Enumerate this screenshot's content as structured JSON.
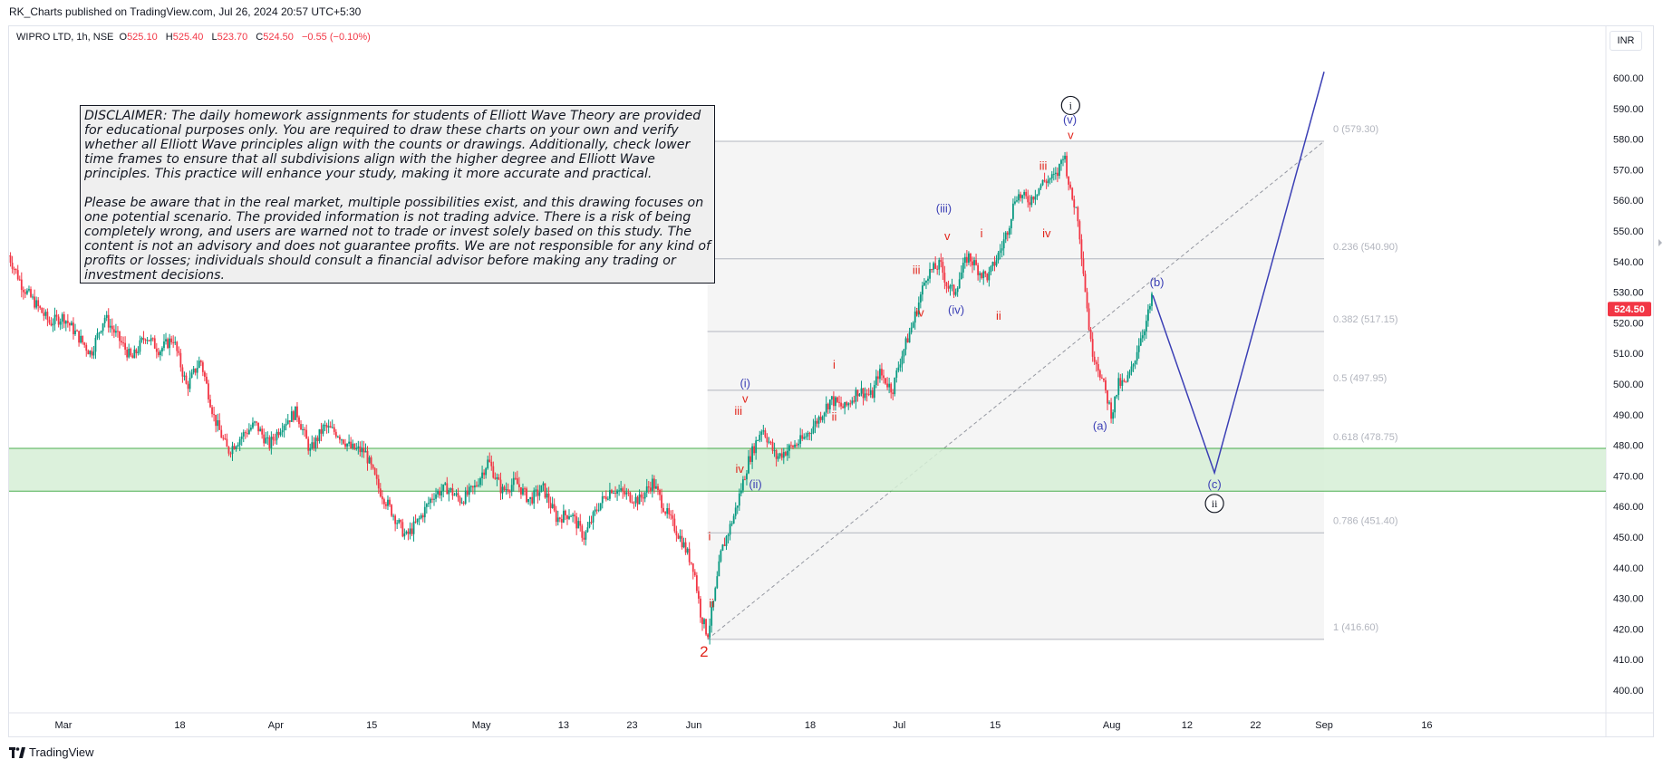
{
  "header": {
    "published_by": "RK_Charts published on TradingView.com, Jul 26, 2024 20:57 UTC+5:30"
  },
  "symbol": {
    "name": "WIPRO LTD, 1h, NSE",
    "open_label": "O",
    "open": "525.10",
    "high_label": "H",
    "high": "525.40",
    "low_label": "L",
    "low": "523.70",
    "close_label": "C",
    "close": "524.50",
    "change": "−0.55 (−0.10%)"
  },
  "currency": "INR",
  "disclaimer": {
    "p1": "DISCLAIMER:  The daily homework assignments for students of Elliott Wave Theory are provided for educational purposes only. You are required to draw these charts on your own and verify whether all Elliott Wave principles align with the counts or drawings. Additionally, check lower time frames to ensure that all subdivisions align with the higher degree and Elliott Wave principles. This practice will enhance your study, making it more accurate and practical.",
    "p2": "Please be aware that in the real market, multiple possibilities exist, and this drawing focuses on one potential scenario. The provided information is not trading advice. There is a risk of being completely wrong, and users are warned not to trade or invest solely based on this study. The content is not an advisory and does not guarantee profits. We are not responsible for any kind of profits or losses; individuals should consult a financial advisor before making any trading or investment decisions."
  },
  "footer": {
    "brand": "TradingView"
  },
  "colors": {
    "up": "#089981",
    "down": "#f23645",
    "wave_blue": "#3b3fb5",
    "wave_red": "#e1261c",
    "zone": "#d6eed6",
    "zone_border": "#4caf50",
    "price_tag": "#f23645"
  },
  "chart_data": {
    "type": "candlestick",
    "y_axis": {
      "min": 395,
      "max": 605,
      "ticks": [
        "600.00",
        "590.00",
        "580.00",
        "570.00",
        "560.00",
        "550.00",
        "540.00",
        "530.00",
        "520.00",
        "510.00",
        "500.00",
        "490.00",
        "480.00",
        "470.00",
        "460.00",
        "450.00",
        "440.00",
        "430.00",
        "420.00",
        "410.00",
        "400.00"
      ]
    },
    "x_axis": {
      "labels": [
        {
          "label": "Mar",
          "day": 0
        },
        {
          "label": "18",
          "day": 17
        },
        {
          "label": "Apr",
          "day": 31
        },
        {
          "label": "15",
          "day": 45
        },
        {
          "label": "May",
          "day": 61
        },
        {
          "label": "13",
          "day": 73
        },
        {
          "label": "23",
          "day": 83
        },
        {
          "label": "Jun",
          "day": 92
        },
        {
          "label": "18",
          "day": 109
        },
        {
          "label": "Jul",
          "day": 122
        },
        {
          "label": "15",
          "day": 136
        },
        {
          "label": "Aug",
          "day": 153
        },
        {
          "label": "12",
          "day": 164
        },
        {
          "label": "22",
          "day": 174
        },
        {
          "label": "Sep",
          "day": 184
        },
        {
          "label": "16",
          "day": 199
        }
      ]
    },
    "last_price": "524.50",
    "support_zone": {
      "top": 479,
      "bottom": 465
    },
    "fibonacci": [
      {
        "label": "0 (579.30)",
        "price": 579.3
      },
      {
        "label": "0.236 (540.90)",
        "price": 540.9
      },
      {
        "label": "0.382 (517.15)",
        "price": 517.15
      },
      {
        "label": "0.5 (497.95)",
        "price": 497.95
      },
      {
        "label": "0.618 (478.75)",
        "price": 478.75
      },
      {
        "label": "0.786 (451.40)",
        "price": 451.4
      },
      {
        "label": "1 (416.60)",
        "price": 416.6
      }
    ],
    "price_path": [
      [
        -8,
        542
      ],
      [
        -6,
        532
      ],
      [
        -4,
        526
      ],
      [
        -2,
        520
      ],
      [
        0,
        522
      ],
      [
        2,
        516
      ],
      [
        4,
        510
      ],
      [
        6,
        522
      ],
      [
        8,
        515
      ],
      [
        10,
        508
      ],
      [
        12,
        516
      ],
      [
        14,
        511
      ],
      [
        16,
        515
      ],
      [
        18,
        499
      ],
      [
        20,
        508
      ],
      [
        22,
        489
      ],
      [
        24,
        478
      ],
      [
        26,
        483
      ],
      [
        28,
        487
      ],
      [
        30,
        480
      ],
      [
        32,
        487
      ],
      [
        34,
        491
      ],
      [
        36,
        478
      ],
      [
        38,
        486
      ],
      [
        40,
        484
      ],
      [
        42,
        479
      ],
      [
        44,
        478
      ],
      [
        46,
        466
      ],
      [
        48,
        458
      ],
      [
        50,
        450
      ],
      [
        52,
        456
      ],
      [
        54,
        464
      ],
      [
        56,
        466
      ],
      [
        58,
        462
      ],
      [
        60,
        466
      ],
      [
        62,
        475
      ],
      [
        64,
        465
      ],
      [
        66,
        468
      ],
      [
        68,
        462
      ],
      [
        70,
        466
      ],
      [
        72,
        456
      ],
      [
        74,
        458
      ],
      [
        76,
        450
      ],
      [
        78,
        460
      ],
      [
        80,
        466
      ],
      [
        82,
        464
      ],
      [
        84,
        462
      ],
      [
        86,
        468
      ],
      [
        88,
        458
      ],
      [
        90,
        450
      ],
      [
        92,
        440
      ],
      [
        93,
        425
      ],
      [
        94,
        418
      ],
      [
        95,
        430
      ],
      [
        96,
        445
      ],
      [
        98,
        458
      ],
      [
        100,
        475
      ],
      [
        102,
        486
      ],
      [
        104,
        476
      ],
      [
        106,
        479
      ],
      [
        108,
        482
      ],
      [
        110,
        488
      ],
      [
        112,
        495
      ],
      [
        114,
        492
      ],
      [
        116,
        498
      ],
      [
        118,
        496
      ],
      [
        119,
        504
      ],
      [
        121,
        498
      ],
      [
        122,
        507
      ],
      [
        124,
        520
      ],
      [
        125,
        528
      ],
      [
        126,
        536
      ],
      [
        128,
        539
      ],
      [
        129,
        532
      ],
      [
        130,
        530
      ],
      [
        132,
        542
      ],
      [
        134,
        536
      ],
      [
        135,
        535
      ],
      [
        136,
        540
      ],
      [
        137,
        545
      ],
      [
        138,
        552
      ],
      [
        139,
        562
      ],
      [
        141,
        560
      ],
      [
        143,
        566
      ],
      [
        145,
        568
      ],
      [
        146,
        576
      ],
      [
        147,
        562
      ],
      [
        148,
        556
      ],
      [
        150,
        512
      ],
      [
        151,
        506
      ],
      [
        152,
        498
      ],
      [
        153,
        490
      ],
      [
        154,
        500
      ],
      [
        155,
        500
      ],
      [
        156,
        505
      ],
      [
        157,
        514
      ],
      [
        158,
        520
      ],
      [
        159,
        529
      ]
    ],
    "projection": [
      [
        159,
        529
      ],
      [
        168,
        471
      ],
      [
        184,
        602
      ]
    ],
    "wave_labels": [
      {
        "text": "2",
        "day": 93.5,
        "price": 411,
        "color": "red",
        "size": 17
      },
      {
        "text": "i",
        "day": 94.3,
        "price": 449,
        "color": "red"
      },
      {
        "text": "ii",
        "day": 94.6,
        "price": 427,
        "color": "red"
      },
      {
        "text": "iii",
        "day": 98.5,
        "price": 490,
        "color": "red"
      },
      {
        "text": "iv",
        "day": 98.7,
        "price": 471,
        "color": "red"
      },
      {
        "text": "v",
        "day": 99.5,
        "price": 494,
        "color": "red"
      },
      {
        "text": "(i)",
        "day": 99.5,
        "price": 499,
        "color": "blue"
      },
      {
        "text": "(ii)",
        "day": 101,
        "price": 466,
        "color": "blue"
      },
      {
        "text": "i",
        "day": 112.5,
        "price": 505,
        "color": "red"
      },
      {
        "text": "ii",
        "day": 112.5,
        "price": 488,
        "color": "red"
      },
      {
        "text": "iii",
        "day": 124.5,
        "price": 536,
        "color": "red"
      },
      {
        "text": "iv",
        "day": 125,
        "price": 522,
        "color": "red"
      },
      {
        "text": "v",
        "day": 129,
        "price": 547,
        "color": "red"
      },
      {
        "text": "(iii)",
        "day": 128.5,
        "price": 556,
        "color": "blue"
      },
      {
        "text": "(iv)",
        "day": 130.3,
        "price": 523,
        "color": "blue"
      },
      {
        "text": "i",
        "day": 134,
        "price": 548,
        "color": "red"
      },
      {
        "text": "ii",
        "day": 136.5,
        "price": 521,
        "color": "red"
      },
      {
        "text": "iii",
        "day": 143,
        "price": 570,
        "color": "red"
      },
      {
        "text": "iv",
        "day": 143.5,
        "price": 548,
        "color": "red"
      },
      {
        "text": "v",
        "day": 147,
        "price": 580,
        "color": "red"
      },
      {
        "text": "(v)",
        "day": 146.9,
        "price": 585,
        "color": "blue"
      },
      {
        "text": "(a)",
        "day": 151.3,
        "price": 485,
        "color": "blue"
      },
      {
        "text": "(b)",
        "day": 159.6,
        "price": 532,
        "color": "blue"
      },
      {
        "text": "(c)",
        "day": 168,
        "price": 466,
        "color": "blue"
      }
    ],
    "circled_labels": [
      {
        "text": "i",
        "day": 147,
        "price": 591
      },
      {
        "text": "ii",
        "day": 168,
        "price": 461
      }
    ]
  }
}
